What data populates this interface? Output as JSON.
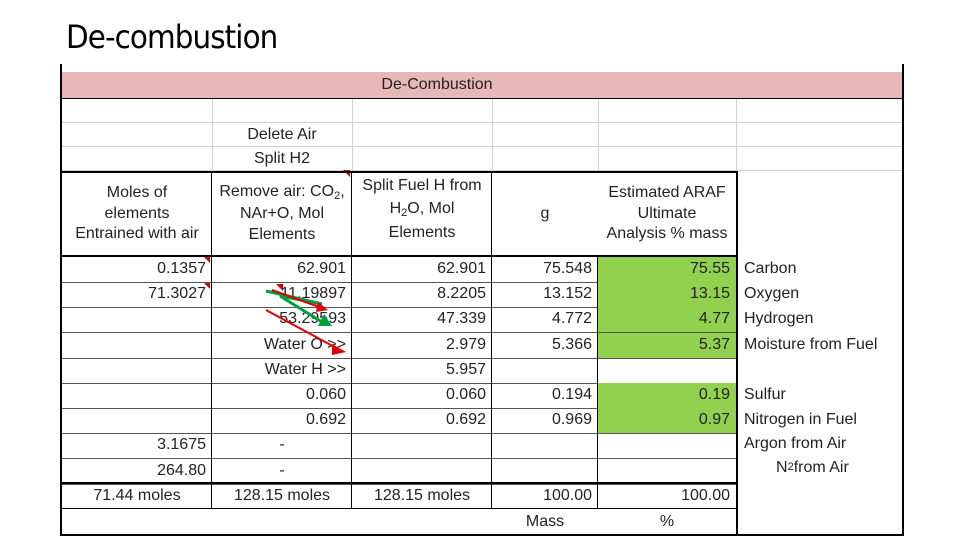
{
  "slide_title": "De-combustion",
  "table": {
    "title": "De-Combustion",
    "col2_top": [
      "Delete Air",
      "Split H2"
    ],
    "headers": {
      "col1": [
        "Moles of",
        "elements",
        "Entrained with air"
      ],
      "col2": [
        "Remove air: CO",
        "2",
        ",",
        "NAr+O, Mol",
        "Elements"
      ],
      "col3": [
        "Split Fuel H from",
        "H",
        "2",
        "O, Mol",
        "Elements"
      ],
      "col4": "g",
      "col5": [
        "Estimated ARAF",
        "Ultimate",
        "Analysis % mass"
      ]
    },
    "rows": [
      {
        "c1": "0.1357",
        "c2": "62.901",
        "c3": "62.901",
        "c4": "75.548",
        "c5": "75.55",
        "label": "Carbon"
      },
      {
        "c1": "71.3027",
        "c2": "11.19897",
        "c3": "8.2205",
        "c4": "13.152",
        "c5": "13.15",
        "label": "Oxygen"
      },
      {
        "c1": "",
        "c2": "53.29593",
        "c3": "47.339",
        "c4": "4.772",
        "c5": "4.77",
        "label": "Hydrogen"
      },
      {
        "c1": "",
        "c2": "Water O >>",
        "c3": "2.979",
        "c4": "5.366",
        "c5": "5.37",
        "label": "Moisture from Fuel"
      },
      {
        "c1": "",
        "c2": "Water H >>",
        "c3": "5.957",
        "c4": "",
        "c5": "",
        "label": ""
      },
      {
        "c1": "",
        "c2": "0.060",
        "c3": "0.060",
        "c4": "0.194",
        "c5": "0.19",
        "label": "Sulfur"
      },
      {
        "c1": "",
        "c2": "0.692",
        "c3": "0.692",
        "c4": "0.969",
        "c5": "0.97",
        "label": "Nitrogen in Fuel"
      },
      {
        "c1": "3.1675",
        "c2": "-",
        "c3": "",
        "c4": "",
        "c5": "",
        "label": "Argon from Air"
      },
      {
        "c1": "264.80",
        "c2": "-",
        "c3": "",
        "c4": "",
        "c5": "",
        "label": "N2 from Air"
      }
    ],
    "totals": {
      "c1": "71.44 moles",
      "c2": "128.15 moles",
      "c3": "128.15 moles",
      "c4": "100.00",
      "c5": "100.00"
    },
    "footer": {
      "c4": "Mass",
      "c5": "%"
    },
    "label_n2_prefix": "N",
    "label_n2_sub": "2",
    "label_n2_suffix": " from Air",
    "colors": {
      "header_fill": "#e6b8b7",
      "green_fill": "#92d050",
      "comment_marker": "#d00000",
      "arrow_red": "#e00000",
      "arrow_green": "#00a040"
    }
  }
}
